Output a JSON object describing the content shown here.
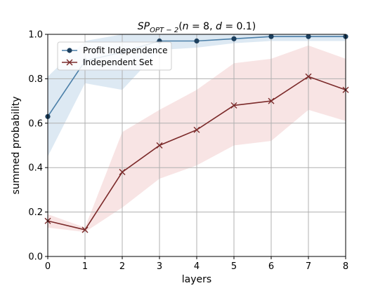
{
  "chart_data": {
    "type": "line",
    "title": {
      "main": "SP",
      "subscript": "OPT − 2",
      "rest_open": "(",
      "n_symbol": "n",
      "n_value": " = 8, ",
      "d_symbol": "d",
      "d_value": " = 0.1)"
    },
    "xlabel": "layers",
    "ylabel": "summed probability",
    "x": [
      0,
      1,
      2,
      3,
      4,
      5,
      6,
      7,
      8
    ],
    "xlim": [
      0,
      8
    ],
    "ylim": [
      0.0,
      1.0
    ],
    "xticks": [
      "0",
      "1",
      "2",
      "3",
      "4",
      "5",
      "6",
      "7",
      "8"
    ],
    "yticks": [
      "0.0",
      "0.2",
      "0.4",
      "0.6",
      "0.8",
      "1.0"
    ],
    "grid": true,
    "legend_position": "top-left",
    "series": [
      {
        "name": "Profit Independence",
        "color": "#4b7fa8",
        "marker_color": "#1c3f5e",
        "band_color": "#cfe0ee",
        "marker": "circle",
        "values": [
          0.63,
          0.88,
          0.92,
          0.97,
          0.97,
          0.98,
          0.99,
          0.99,
          0.99
        ],
        "lower": [
          0.45,
          0.78,
          0.75,
          0.93,
          0.94,
          0.96,
          0.97,
          0.97,
          0.97
        ],
        "upper": [
          0.81,
          0.97,
          1.0,
          1.0,
          1.0,
          1.0,
          1.0,
          1.0,
          1.0
        ]
      },
      {
        "name": "Independent Set",
        "color": "#7b2a2a",
        "marker_color": "#7b2a2a",
        "band_color": "#f5d9d9",
        "marker": "x",
        "values": [
          0.16,
          0.12,
          0.38,
          0.5,
          0.57,
          0.68,
          0.7,
          0.81,
          0.75
        ],
        "lower": [
          0.13,
          0.11,
          0.22,
          0.35,
          0.41,
          0.5,
          0.52,
          0.66,
          0.61
        ],
        "upper": [
          0.19,
          0.13,
          0.56,
          0.66,
          0.75,
          0.87,
          0.89,
          0.95,
          0.89
        ]
      }
    ]
  }
}
